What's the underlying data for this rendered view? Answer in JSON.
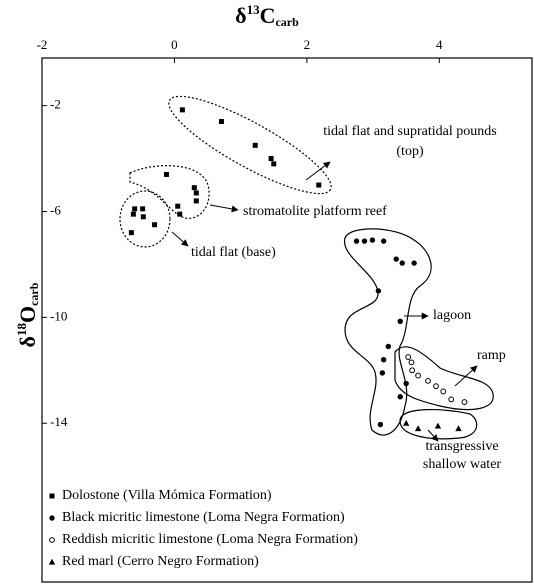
{
  "chart_data": {
    "type": "scatter",
    "xlabel": {
      "symbol": "δ",
      "sup": "13",
      "base": "C",
      "sub": "carb"
    },
    "ylabel": {
      "symbol": "δ",
      "sup": "18",
      "base": "O",
      "sub": "carb"
    },
    "xlim": [
      -2,
      5.4
    ],
    "xticks": [
      -2,
      0,
      2,
      4
    ],
    "ylim": [
      -0.2,
      -20
    ],
    "yticks": [
      -2,
      -6,
      -10,
      -14
    ],
    "legend": "bottom-left",
    "series": [
      {
        "name": "Dolostone (Villa Mómica Formation)",
        "marker": "square",
        "color": "#000000",
        "x": [
          0.12,
          0.71,
          1.22,
          1.46,
          1.5,
          2.18,
          -0.12,
          0.3,
          0.05,
          0.08,
          0.33,
          0.33,
          -0.6,
          -0.48,
          -0.62,
          -0.47,
          -0.3,
          -0.65
        ],
        "y": [
          -2.16,
          -2.6,
          -3.5,
          -4.0,
          -4.2,
          -5.0,
          -4.6,
          -5.1,
          -5.8,
          -6.1,
          -5.3,
          -5.6,
          -5.9,
          -5.9,
          -6.1,
          -6.2,
          -6.5,
          -6.8
        ]
      },
      {
        "name": "Black micritic limestone (Loma Negra Formation)",
        "marker": "circle",
        "color": "#000000",
        "x": [
          2.75,
          2.87,
          2.99,
          3.16,
          3.35,
          3.44,
          3.62,
          3.08,
          3.41,
          3.23,
          3.16,
          3.14,
          3.5,
          3.41,
          3.11
        ],
        "y": [
          -7.12,
          -7.12,
          -7.08,
          -7.12,
          -7.8,
          -7.95,
          -7.95,
          -9.0,
          -10.15,
          -11.1,
          -11.6,
          -12.1,
          -12.5,
          -13.0,
          -14.05
        ]
      },
      {
        "name": "Reddish micritic limestone (Loma Negra Formation)",
        "marker": "open-circle",
        "color": "#000000",
        "x": [
          3.53,
          3.58,
          3.59,
          3.68,
          3.83,
          3.95,
          4.06,
          4.18,
          4.38
        ],
        "y": [
          -11.5,
          -11.7,
          -12.0,
          -12.2,
          -12.4,
          -12.6,
          -12.8,
          -13.1,
          -13.2
        ]
      },
      {
        "name": "Red marl (Cerro Negro Formation)",
        "marker": "triangle",
        "color": "#000000",
        "x": [
          3.5,
          3.68,
          3.98,
          4.29
        ],
        "y": [
          -14.0,
          -14.2,
          -14.1,
          -14.2
        ]
      }
    ],
    "annotations": [
      "tidal flat and supratidal pounds",
      "(top)",
      "stromatolite platform reef",
      "tidal flat (base)",
      "lagoon",
      "ramp",
      "transgressive",
      "shallow water"
    ]
  }
}
